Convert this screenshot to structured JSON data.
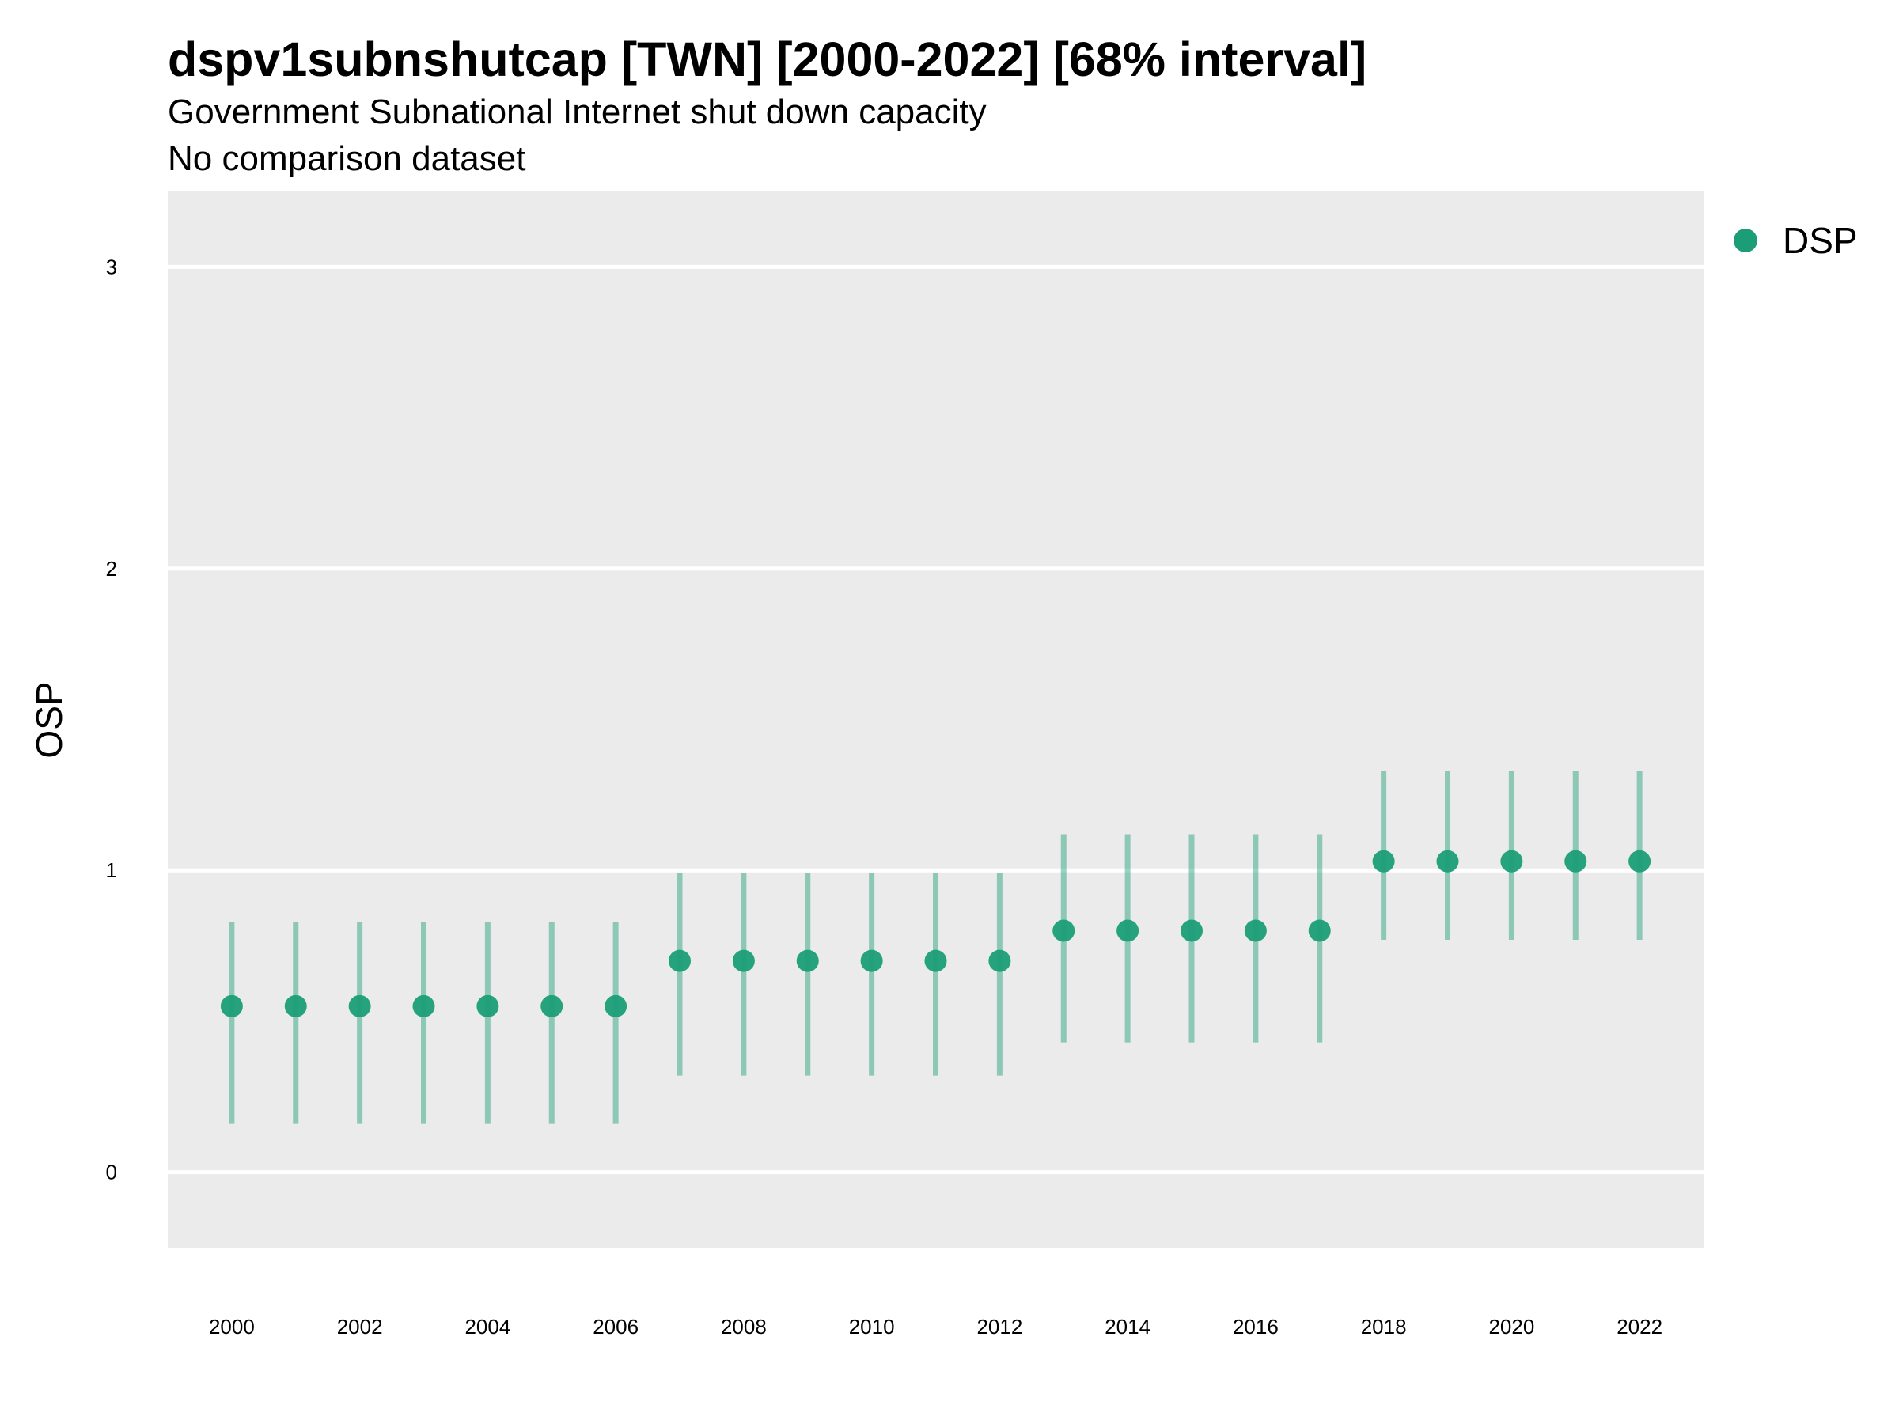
{
  "chart_data": {
    "type": "scatter",
    "title": "dspv1subnshutcap [TWN] [2000-2022] [68% interval]",
    "subtitle": "Government Subnational Internet shut down capacity",
    "caption": "No comparison dataset",
    "xlabel": "",
    "ylabel": "OSP",
    "xlim": [
      1999,
      2023
    ],
    "ylim": [
      -0.25,
      3.25
    ],
    "x_ticks": [
      2000,
      2002,
      2004,
      2006,
      2008,
      2010,
      2012,
      2014,
      2016,
      2018,
      2020,
      2022
    ],
    "y_ticks": [
      0,
      1,
      2,
      3
    ],
    "grid": true,
    "legend_position": "right",
    "colors": {
      "series": "#1b9e77",
      "panel": "#ebebeb",
      "grid": "#ffffff"
    },
    "series": [
      {
        "name": "DSP",
        "x": [
          2000,
          2001,
          2002,
          2003,
          2004,
          2005,
          2006,
          2007,
          2008,
          2009,
          2010,
          2011,
          2012,
          2013,
          2014,
          2015,
          2016,
          2017,
          2018,
          2019,
          2020,
          2021,
          2022
        ],
        "y": [
          0.55,
          0.55,
          0.55,
          0.55,
          0.55,
          0.55,
          0.55,
          0.7,
          0.7,
          0.7,
          0.7,
          0.7,
          0.7,
          0.8,
          0.8,
          0.8,
          0.8,
          0.8,
          1.03,
          1.03,
          1.03,
          1.03,
          1.03
        ],
        "lower": [
          0.16,
          0.16,
          0.16,
          0.16,
          0.16,
          0.16,
          0.16,
          0.32,
          0.32,
          0.32,
          0.32,
          0.32,
          0.32,
          0.43,
          0.43,
          0.43,
          0.43,
          0.43,
          0.77,
          0.77,
          0.77,
          0.77,
          0.77
        ],
        "upper": [
          0.83,
          0.83,
          0.83,
          0.83,
          0.83,
          0.83,
          0.83,
          0.99,
          0.99,
          0.99,
          0.99,
          0.99,
          0.99,
          1.12,
          1.12,
          1.12,
          1.12,
          1.12,
          1.33,
          1.33,
          1.33,
          1.33,
          1.33
        ]
      }
    ]
  }
}
